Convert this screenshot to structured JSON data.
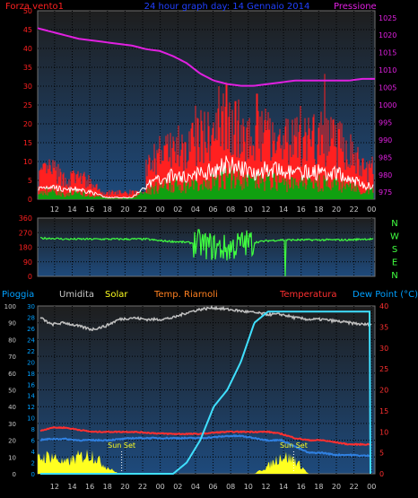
{
  "colors": {
    "wind": "#ff2020",
    "gust_low": "#10a010",
    "avg": "#ffffff",
    "pressure": "#e020e0",
    "title": "#2040ff",
    "dir": "#40ff40",
    "rain_axis": "#00a0ff",
    "humidity": "#c0c0c0",
    "solar": "#ffff20",
    "temp_axis_label": "#ff8020",
    "temp": "#ff3030",
    "dewpoint": "#3080e0",
    "tempR": "#ff6020",
    "cyan": "#40e0ff",
    "plot_bg_top": "#1e1e1e",
    "plot_bg_bottom": "#1e4878",
    "grid": "#000000"
  },
  "header": {
    "left": "Forza vento1",
    "center": "24 hour graph day: 14 Gennaio 2014",
    "right": "Pressione"
  },
  "dir_labels": [
    "N",
    "W",
    "S",
    "E",
    "N"
  ],
  "lower_labels": {
    "rain": "Pioggia",
    "humidity": "Umidita",
    "solar": "Solar",
    "temp_r": "Temp. Riarnoli",
    "temp": "Temperatura",
    "dew": "Dew Point (°C)"
  },
  "sunset_label": "Sun Set",
  "chart_data": [
    {
      "type": "line",
      "panel": "wind-pressure",
      "x_ticks": [
        "12",
        "14",
        "16",
        "18",
        "20",
        "22",
        "00",
        "02",
        "04",
        "06",
        "08",
        "10",
        "12",
        "14",
        "16",
        "18",
        "20",
        "22",
        "00"
      ],
      "y_left_ticks": [
        "0",
        "5",
        "10",
        "15",
        "20",
        "25",
        "30",
        "35",
        "40",
        "45",
        "50"
      ],
      "y_left_range": [
        0,
        50
      ],
      "y_right_ticks": [
        "975",
        "980",
        "985",
        "990",
        "995",
        "1000",
        "1005",
        "1010",
        "1015",
        "1020",
        "1025"
      ],
      "y_right_range": [
        973,
        1027
      ],
      "series": [
        {
          "name": "Pressione",
          "x": [
            0,
            1,
            2,
            3,
            4,
            5,
            6,
            7,
            8,
            9,
            10,
            11,
            12,
            13,
            14,
            15,
            16,
            17,
            18,
            19,
            20,
            21,
            22,
            23,
            24
          ],
          "values": [
            1022,
            1021,
            1020,
            1019,
            1018.5,
            1018,
            1017.5,
            1017,
            1016,
            1015.5,
            1014,
            1012,
            1009,
            1007,
            1006,
            1005.5,
            1005.5,
            1006,
            1006.5,
            1007,
            1007,
            1007,
            1007,
            1007,
            1007.5
          ]
        },
        {
          "name": "Forza vento1",
          "x": [
            0,
            1,
            2,
            3,
            4,
            5,
            6,
            7,
            8,
            9,
            10,
            11,
            12,
            13,
            14,
            15,
            16,
            17,
            18,
            19,
            20,
            21,
            22,
            23,
            24
          ],
          "values": [
            6,
            8,
            5,
            6,
            4,
            1,
            1,
            1,
            8,
            12,
            14,
            13,
            16,
            17,
            22,
            18,
            16,
            18,
            16,
            15,
            16,
            16,
            15,
            13,
            8
          ]
        }
      ]
    },
    {
      "type": "line",
      "panel": "wind-direction",
      "y_ticks": [
        "0",
        "90",
        "180",
        "270",
        "360"
      ],
      "y_range": [
        0,
        360
      ],
      "x": [
        0,
        1,
        2,
        3,
        4,
        5,
        6,
        7,
        8,
        9,
        10,
        11,
        12,
        13,
        14,
        15,
        16,
        17,
        18,
        19,
        20,
        21,
        22,
        23,
        24
      ],
      "values": [
        235,
        235,
        230,
        230,
        230,
        230,
        230,
        230,
        230,
        220,
        215,
        210,
        200,
        180,
        170,
        200,
        210,
        220,
        225,
        225,
        225,
        225,
        225,
        225,
        230
      ]
    },
    {
      "type": "line",
      "panel": "weather",
      "x_ticks": [
        "12",
        "14",
        "16",
        "18",
        "20",
        "22",
        "00",
        "02",
        "04",
        "06",
        "08",
        "10",
        "12",
        "14",
        "16",
        "18",
        "20",
        "22",
        "00"
      ],
      "y_pct_ticks": [
        "0",
        "10",
        "20",
        "30",
        "40",
        "50",
        "60",
        "70",
        "80",
        "90",
        "100"
      ],
      "y_rain_ticks": [
        "0",
        "2",
        "4",
        "6",
        "8",
        "10",
        "12",
        "14",
        "16",
        "18",
        "20",
        "22",
        "24",
        "26",
        "28",
        "30"
      ],
      "y_temp_ticks": [
        "0",
        "5",
        "10",
        "15",
        "20",
        "25",
        "30",
        "35",
        "40"
      ],
      "y_temp_range": [
        0,
        40
      ],
      "series": [
        {
          "name": "Umidita",
          "x": [
            0,
            1,
            2,
            3,
            4,
            5,
            6,
            7,
            8,
            9,
            10,
            11,
            12,
            13,
            14,
            15,
            16,
            17,
            18,
            19,
            20,
            21,
            22,
            23,
            24
          ],
          "values": [
            94,
            89,
            90,
            88,
            86,
            88,
            92,
            93,
            92,
            92,
            93,
            96,
            98,
            99,
            98,
            97,
            96,
            95,
            95,
            93,
            92,
            92,
            91,
            90,
            89
          ]
        },
        {
          "name": "Temperatura",
          "x": [
            0,
            1,
            2,
            3,
            4,
            5,
            6,
            7,
            8,
            9,
            10,
            11,
            12,
            13,
            14,
            15,
            16,
            17,
            18,
            19,
            20,
            21,
            22,
            23,
            24
          ],
          "values": [
            10,
            11,
            11,
            10.5,
            10,
            10,
            10,
            10,
            9.8,
            9.6,
            9.5,
            9.5,
            9.5,
            9.8,
            10,
            10,
            10,
            10,
            9.5,
            8.5,
            8,
            8,
            7.5,
            7,
            7
          ]
        },
        {
          "name": "Dew Point (°C)",
          "x": [
            0,
            1,
            2,
            3,
            4,
            5,
            6,
            7,
            8,
            9,
            10,
            11,
            12,
            13,
            14,
            15,
            16,
            17,
            18,
            19,
            20,
            21,
            22,
            23,
            24
          ],
          "values": [
            8,
            8.3,
            8.3,
            8,
            8,
            8,
            8.2,
            8.5,
            8.5,
            8.5,
            8.5,
            8.5,
            8.5,
            8.7,
            9,
            9,
            8.5,
            8,
            8,
            6.5,
            5,
            5,
            4.5,
            4.5,
            4.3
          ]
        },
        {
          "name": "Pioggia",
          "x": [
            0,
            1,
            2,
            3,
            4,
            5,
            6,
            7,
            8,
            9,
            10,
            11,
            12,
            13,
            14,
            15,
            16,
            17,
            18,
            19,
            20,
            21,
            22,
            23,
            24
          ],
          "values": [
            0,
            0,
            0,
            0,
            0,
            0,
            0,
            0,
            0,
            0,
            0,
            2,
            6,
            12,
            15,
            20,
            27,
            29,
            29,
            29,
            29,
            29,
            29,
            29,
            29
          ]
        },
        {
          "name": "Solar",
          "x": [
            0,
            1,
            2,
            3,
            4,
            5,
            6,
            7,
            8,
            9,
            10,
            11,
            12,
            13,
            14,
            15,
            16,
            17,
            18,
            19,
            20,
            21,
            22,
            23,
            24
          ],
          "values": [
            10,
            12,
            7,
            11,
            13,
            5,
            0,
            0,
            0,
            0,
            0,
            0,
            0,
            0,
            0,
            0,
            0,
            5,
            12,
            9,
            0,
            0,
            0,
            0,
            0
          ]
        }
      ]
    }
  ]
}
